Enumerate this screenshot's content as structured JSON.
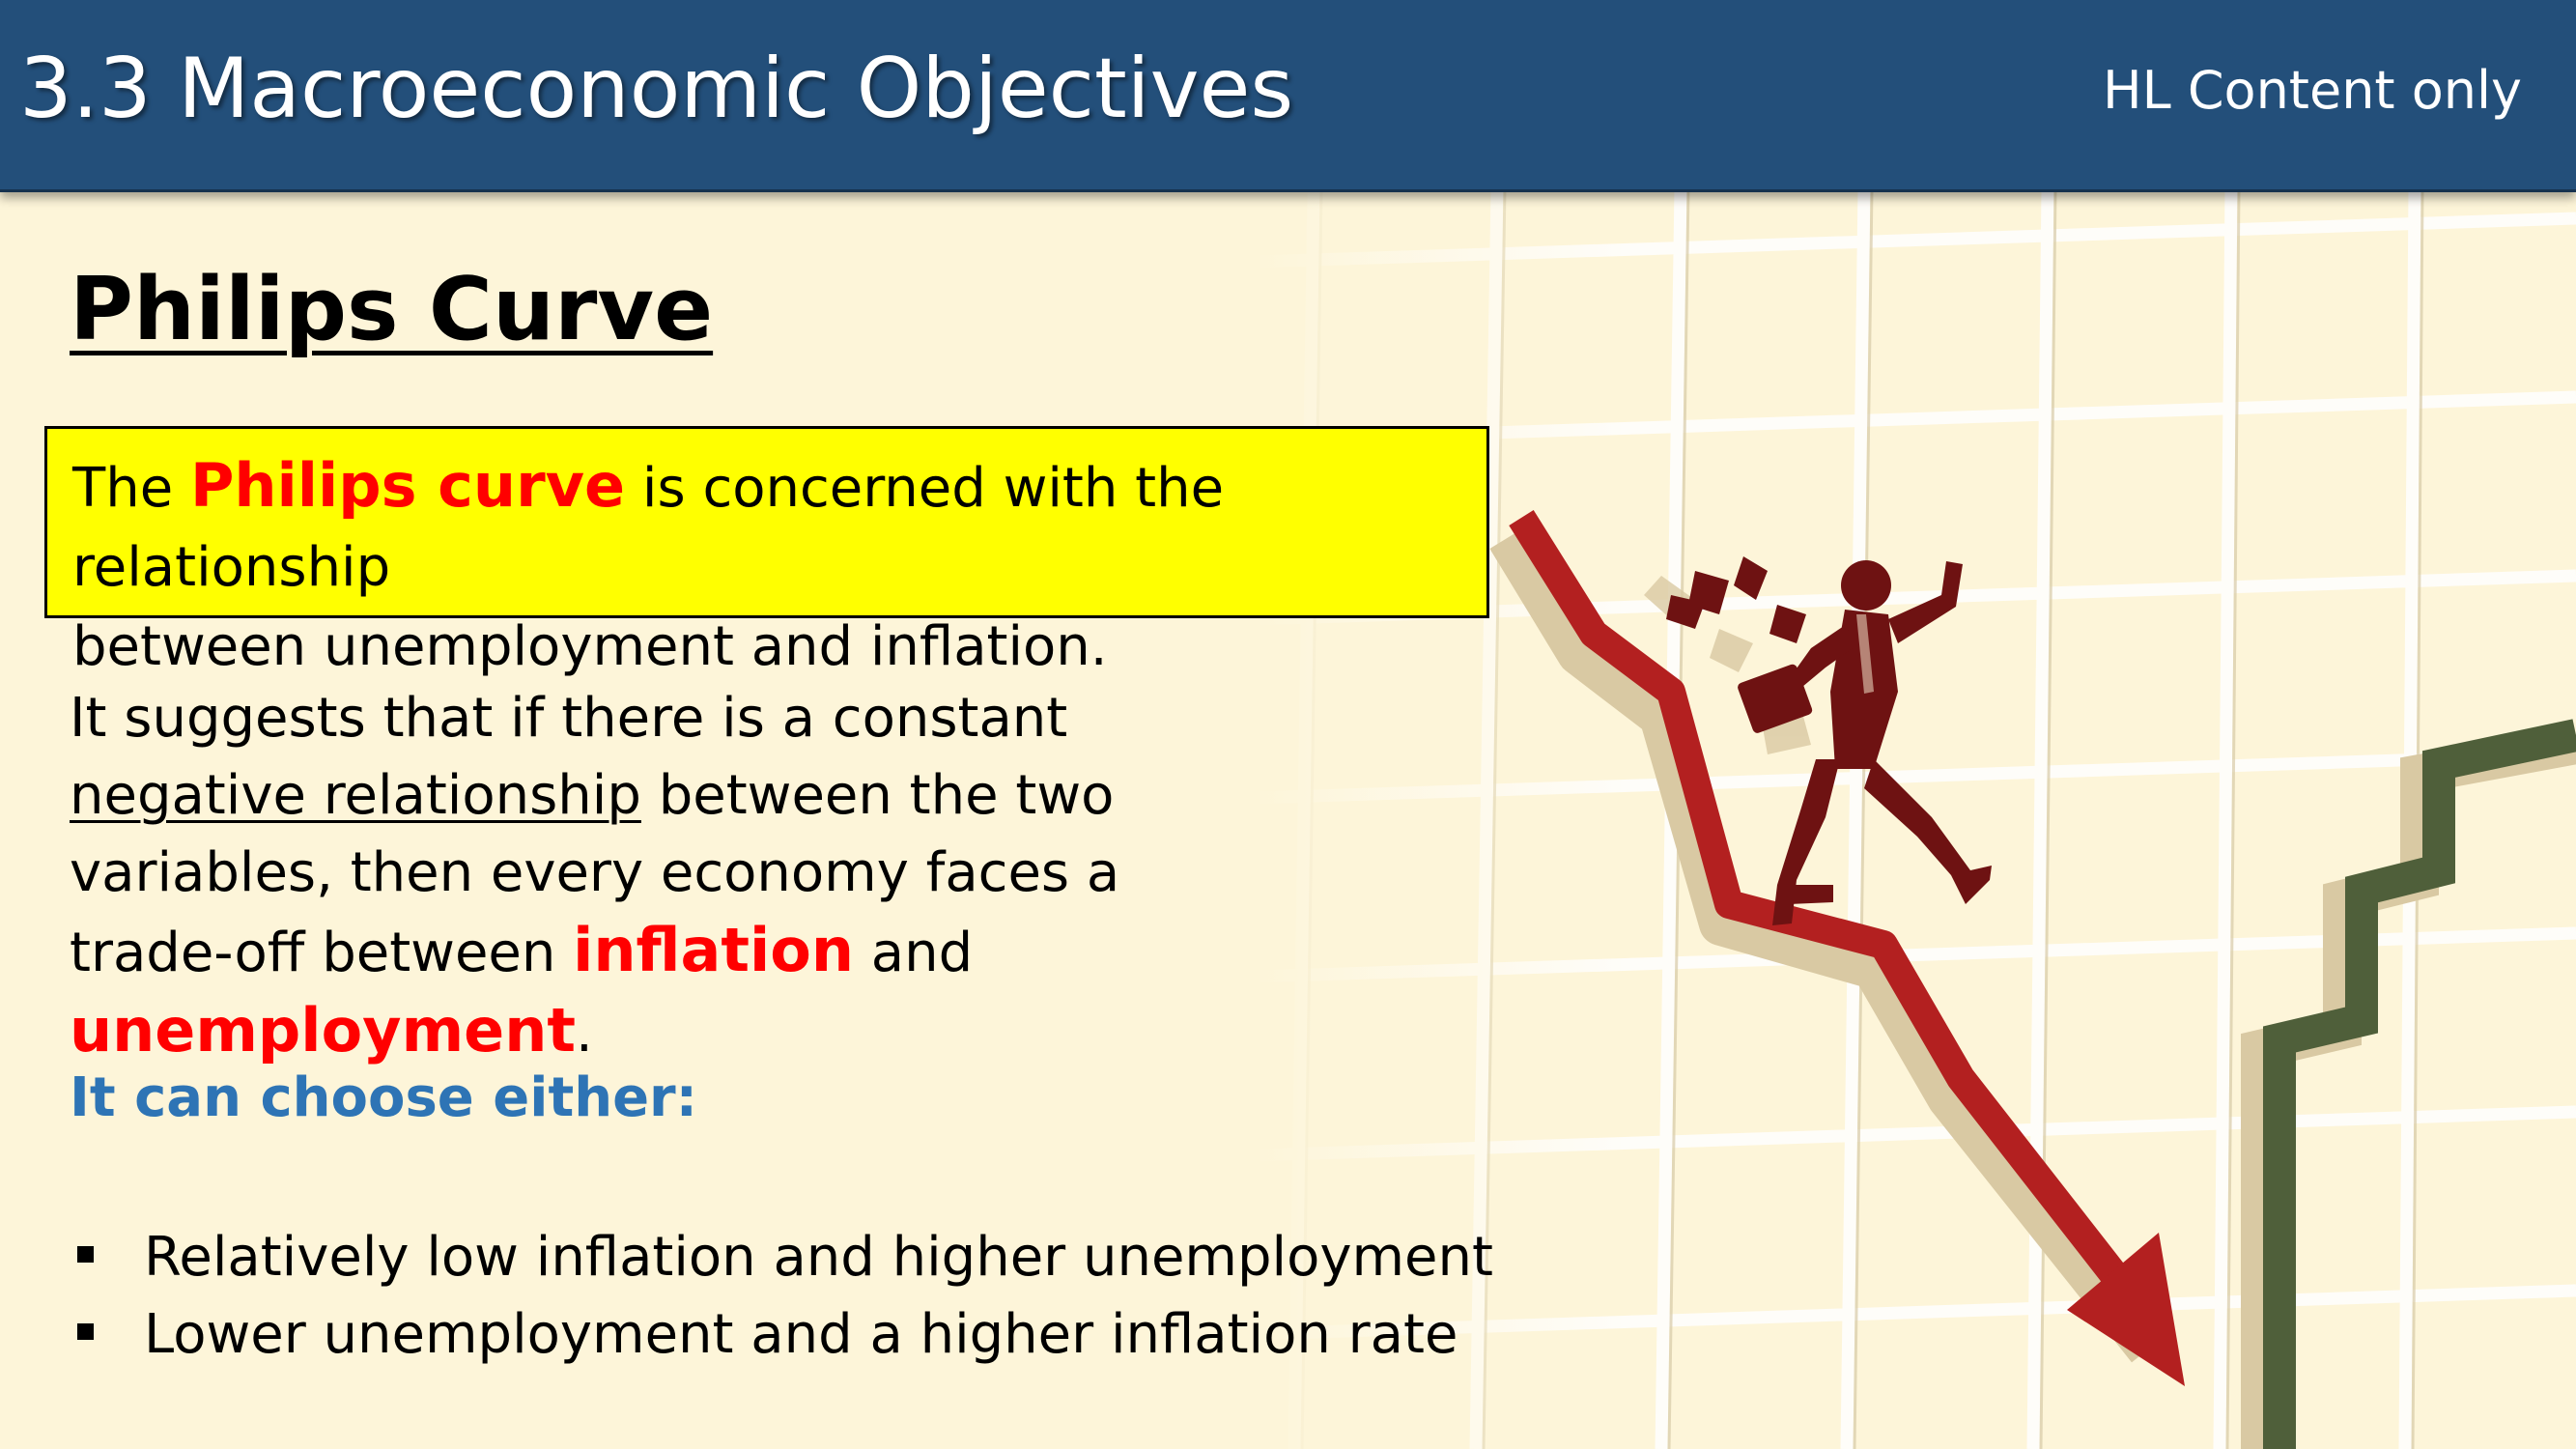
{
  "header": {
    "title": "3.3 Macroeconomic Objectives",
    "tag": "HL Content only"
  },
  "heading": "Philips Curve",
  "definition": {
    "prefix": "The",
    "term": "Philips curve",
    "rest_line1": "is concerned with the relationship",
    "line2": "between unemployment and inflation."
  },
  "body": {
    "part1": "It suggests that if there is a constant",
    "underlined": "negative relationship",
    "part2": "between the two variables, then every economy faces a trade-off between",
    "keyword1": "inflation",
    "and": "and",
    "keyword2": "unemployment",
    "end": "."
  },
  "choose_heading": "It can choose either:",
  "options": [
    "Relatively low inflation and higher unemployment",
    "Lower unemployment and a higher inflation rate"
  ],
  "colors": {
    "header_bg": "#234f7a",
    "highlight_box": "#ffff00",
    "emphasis_red": "#ff0000",
    "subheading_blue": "#2e74b5",
    "down_arrow": "#b32020",
    "up_line": "#4f5f3a",
    "figure": "#6e1212"
  }
}
